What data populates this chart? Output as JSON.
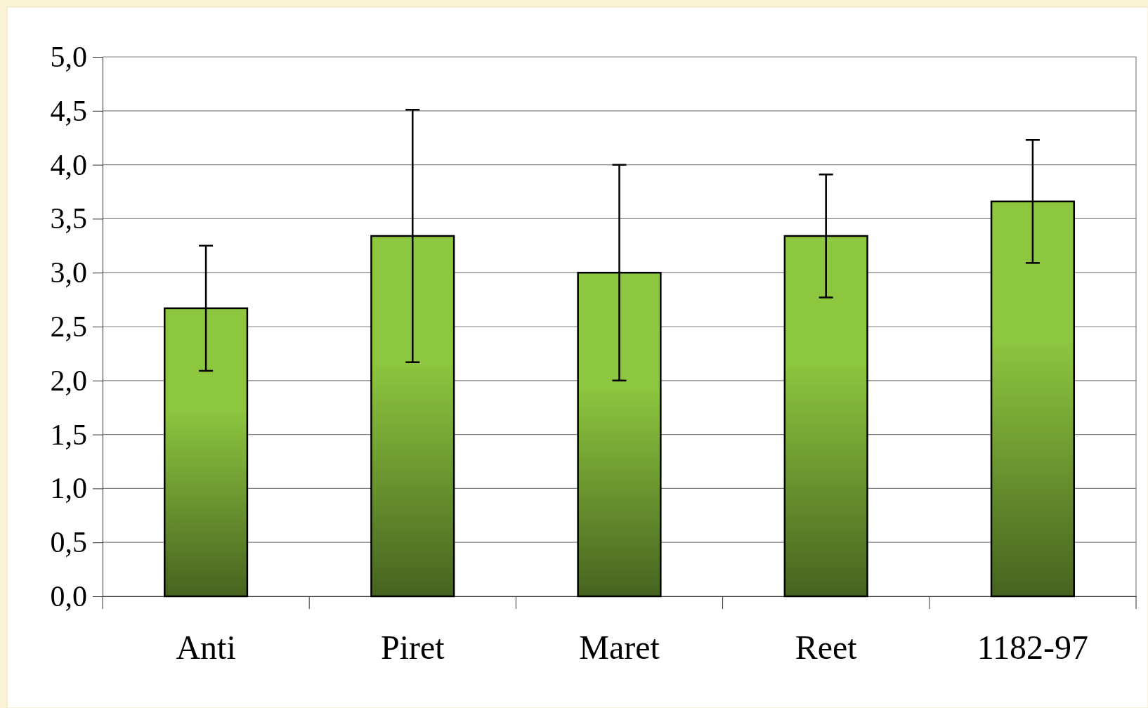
{
  "chart_data": {
    "type": "bar",
    "categories": [
      "Anti",
      "Piret",
      "Maret",
      "Reet",
      "1182-97"
    ],
    "values": [
      2.67,
      3.34,
      3.0,
      3.34,
      3.66
    ],
    "errors": [
      0.58,
      1.17,
      1.0,
      0.57,
      0.57
    ],
    "color": "#8dc63f",
    "ylim": [
      0,
      5
    ],
    "yticks": [
      {
        "value": 0,
        "label": "0,0"
      },
      {
        "value": 0.5,
        "label": "0,5"
      },
      {
        "value": 1,
        "label": "1,0"
      },
      {
        "value": 1.5,
        "label": "1,5"
      },
      {
        "value": 2,
        "label": "2,0"
      },
      {
        "value": 2.5,
        "label": "2,5"
      },
      {
        "value": 3,
        "label": "3,0"
      },
      {
        "value": 3.5,
        "label": "3,5"
      },
      {
        "value": 4,
        "label": "4,0"
      },
      {
        "value": 4.5,
        "label": "4,5"
      },
      {
        "value": 5,
        "label": "5,0"
      }
    ],
    "grid": "y"
  }
}
